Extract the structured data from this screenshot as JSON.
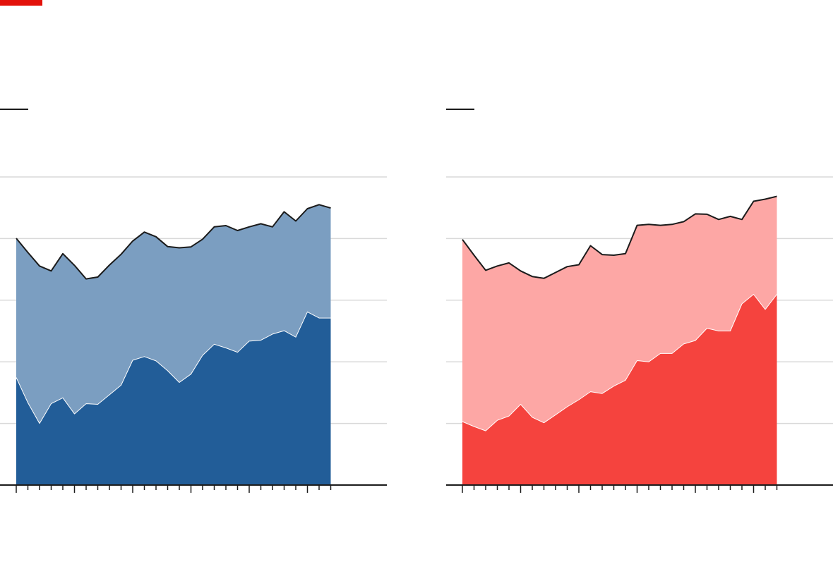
{
  "colors": {
    "accent": "#e3120b",
    "left_total": "#7b9ec1",
    "left_part": "#225d98",
    "right_total": "#fda7a5",
    "right_part": "#f5433e",
    "outline": "#1b1b1b",
    "grid": "#d9d9d9",
    "axis": "#1b1b1b"
  },
  "chart_data": [
    {
      "type": "area",
      "title": "",
      "xlabel": "",
      "ylabel": "",
      "x_count": 28,
      "ylim": [
        0,
        100
      ],
      "grid": true,
      "legend": "none",
      "series": [
        {
          "role": "total",
          "values": [
            80.1,
            75.5,
            71.1,
            69.5,
            75.1,
            71.3,
            66.9,
            67.5,
            71.4,
            74.9,
            79.2,
            82.1,
            80.6,
            77.4,
            77.0,
            77.3,
            79.8,
            83.8,
            84.2,
            82.6,
            83.8,
            84.8,
            83.8,
            88.7,
            85.7,
            89.7,
            91.0,
            89.9
          ]
        },
        {
          "role": "part",
          "values": [
            34.9,
            26.7,
            20.0,
            26.4,
            28.3,
            23.1,
            26.4,
            26.2,
            29.3,
            32.4,
            40.5,
            41.7,
            40.3,
            37.1,
            33.3,
            36.0,
            42.1,
            45.7,
            44.5,
            43.1,
            46.7,
            47.0,
            49.0,
            50.1,
            48.0,
            56.2,
            54.2,
            54.2
          ]
        }
      ]
    },
    {
      "type": "area",
      "title": "",
      "xlabel": "",
      "ylabel": "",
      "x_count": 28,
      "ylim": [
        0,
        100
      ],
      "grid": true,
      "legend": "none",
      "series": [
        {
          "role": "total",
          "values": [
            79.7,
            74.6,
            69.7,
            71.1,
            72.1,
            69.5,
            67.7,
            67.1,
            69.0,
            70.9,
            71.5,
            77.7,
            74.8,
            74.6,
            75.1,
            84.3,
            84.6,
            84.3,
            84.6,
            85.5,
            88.0,
            87.9,
            86.2,
            87.2,
            86.2,
            92.1,
            92.8,
            93.7
          ]
        },
        {
          "role": "part",
          "values": [
            20.6,
            19.0,
            17.6,
            21.0,
            22.4,
            26.2,
            22.0,
            20.2,
            22.8,
            25.4,
            27.7,
            30.3,
            29.7,
            32.1,
            34.0,
            40.4,
            40.0,
            42.7,
            42.7,
            45.8,
            46.9,
            50.9,
            50.0,
            50.0,
            58.8,
            61.9,
            57.0,
            61.9
          ]
        }
      ]
    }
  ]
}
